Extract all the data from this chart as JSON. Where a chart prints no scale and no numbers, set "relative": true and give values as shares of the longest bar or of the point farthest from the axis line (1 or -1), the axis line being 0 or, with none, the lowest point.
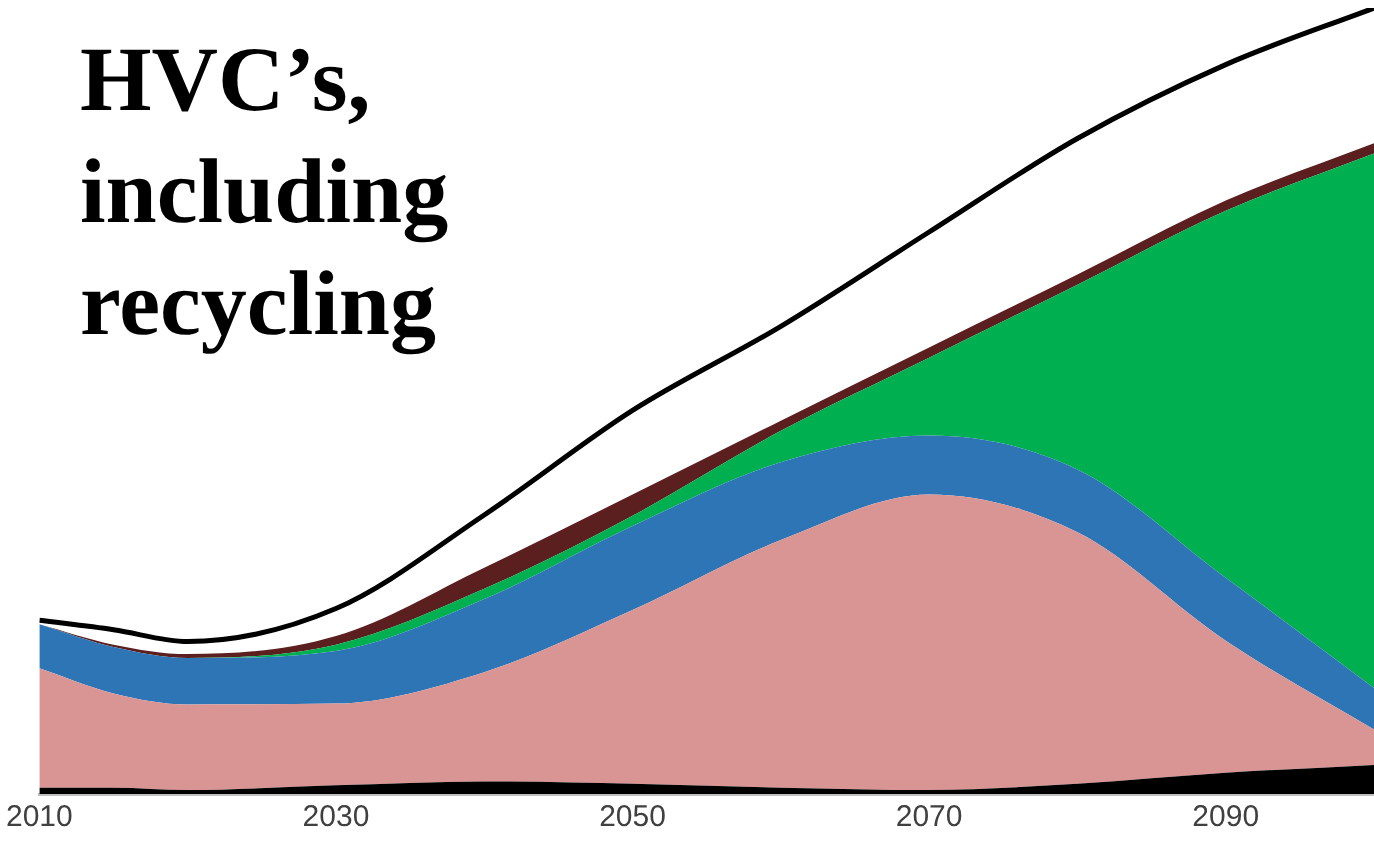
{
  "chart_data": {
    "type": "area",
    "title": "HVC’s, including recycling",
    "relative": true,
    "stacked": true,
    "grid": false,
    "legend": false,
    "marker": "none",
    "x": [
      2010,
      2015,
      2020,
      2030,
      2040,
      2050,
      2060,
      2070,
      2080,
      2090,
      2100
    ],
    "xlim": [
      2010,
      2100
    ],
    "xticks": [
      2010,
      2030,
      2050,
      2070,
      2090
    ],
    "series": [
      {
        "color": "#000000",
        "values": [
          0.008,
          0.008,
          0.005,
          0.011,
          0.016,
          0.013,
          0.008,
          0.005,
          0.013,
          0.027,
          0.037
        ]
      },
      {
        "color": "#d99594",
        "values": [
          0.152,
          0.12,
          0.109,
          0.104,
          0.139,
          0.221,
          0.315,
          0.376,
          0.32,
          0.168,
          0.045
        ]
      },
      {
        "color": "#2e75b6",
        "values": [
          0.056,
          0.059,
          0.059,
          0.067,
          0.093,
          0.107,
          0.099,
          0.075,
          0.08,
          0.08,
          0.053
        ]
      },
      {
        "color": "#00b050",
        "values": [
          0,
          0,
          0,
          0.008,
          0.013,
          0.013,
          0.04,
          0.099,
          0.235,
          0.467,
          0.68
        ]
      },
      {
        "color": "#5c1f1f",
        "values": [
          0,
          0.003,
          0.005,
          0.011,
          0.027,
          0.027,
          0.013,
          0.013,
          0.013,
          0.013,
          0.013
        ]
      },
      {
        "color": "#ffffff",
        "values": [
          0.005,
          0.019,
          0.016,
          0.035,
          0.067,
          0.107,
          0.12,
          0.147,
          0.173,
          0.173,
          0.172
        ]
      }
    ]
  }
}
